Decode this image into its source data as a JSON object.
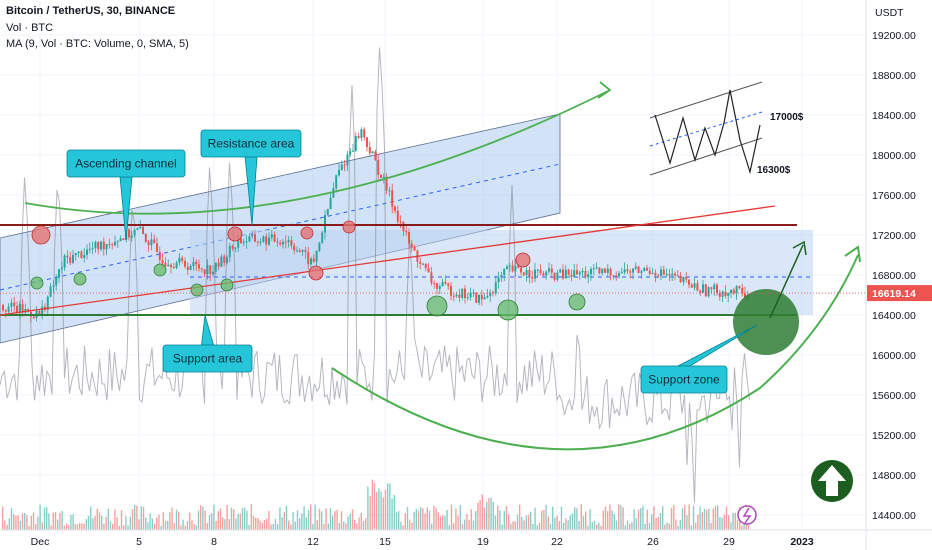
{
  "header": {
    "symbol_line": "Bitcoin / TetherUS, 30, BINANCE",
    "volume_line": "Vol · BTC",
    "ma_line": "MA (9, Vol · BTC: Volume, 0, SMA, 5)"
  },
  "price_axis": {
    "currency": "USDT",
    "current_price": "16619.14"
  },
  "chart_data": {
    "type": "candlestick",
    "symbol": "BTC/USDT",
    "interval": "30",
    "exchange": "BINANCE",
    "ylim": [
      14200,
      19450
    ],
    "y_ticks": [
      14400,
      14800,
      15200,
      15600,
      16000,
      16400,
      16800,
      17200,
      17600,
      18000,
      18400,
      18800,
      19200
    ],
    "x_ticks": [
      "Dec",
      "5",
      "8",
      "12",
      "15",
      "19",
      "22",
      "26",
      "29",
      "2023"
    ],
    "approx_close_path": [
      {
        "x": "Dec 1",
        "price": 16400
      },
      {
        "x": "Dec 2",
        "price": 16950
      },
      {
        "x": "Dec 3",
        "price": 17050
      },
      {
        "x": "Dec 5",
        "price": 17250
      },
      {
        "x": "Dec 6",
        "price": 16950
      },
      {
        "x": "Dec 8",
        "price": 16850
      },
      {
        "x": "Dec 9",
        "price": 17150
      },
      {
        "x": "Dec 11",
        "price": 17150
      },
      {
        "x": "Dec 12",
        "price": 16900
      },
      {
        "x": "Dec 13",
        "price": 17800
      },
      {
        "x": "Dec 14",
        "price": 18250
      },
      {
        "x": "Dec 15",
        "price": 17700
      },
      {
        "x": "Dec 16",
        "price": 17100
      },
      {
        "x": "Dec 17",
        "price": 16700
      },
      {
        "x": "Dec 19",
        "price": 16550
      },
      {
        "x": "Dec 20",
        "price": 16850
      },
      {
        "x": "Dec 22",
        "price": 16800
      },
      {
        "x": "Dec 26",
        "price": 16850
      },
      {
        "x": "Dec 28",
        "price": 16650
      },
      {
        "x": "Dec 30",
        "price": 16619
      }
    ],
    "levels": {
      "resistance": 17300,
      "support": 16400,
      "support_zone_center": 16350
    },
    "annotations": {
      "ascending_channel": "Ascending channel",
      "resistance_area": "Resistance area",
      "support_area": "Support area",
      "support_zone": "Support zone",
      "target_upper": "17000$",
      "target_lower": "16300$"
    }
  }
}
